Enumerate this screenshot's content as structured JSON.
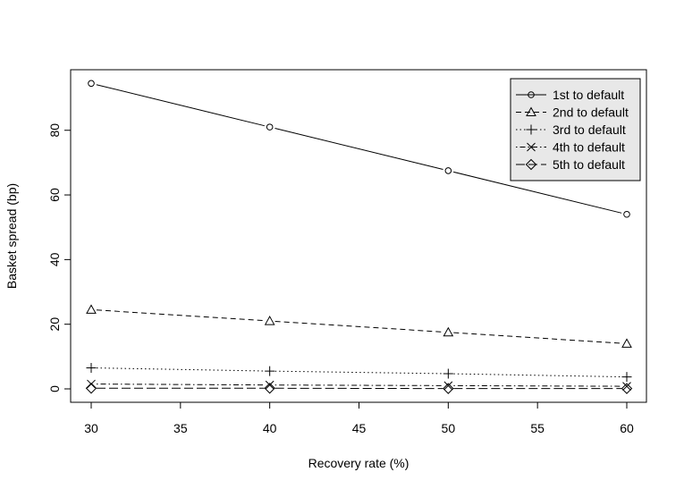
{
  "chart_data": {
    "type": "line",
    "title": "",
    "xlabel": "Recovery rate (%)",
    "ylabel": "Basket spread (bp)",
    "x": [
      30,
      40,
      50,
      60
    ],
    "xlim": [
      30,
      60
    ],
    "ylim": [
      0,
      95
    ],
    "xticks": [
      30,
      35,
      40,
      45,
      50,
      55,
      60
    ],
    "yticks": [
      0,
      20,
      40,
      60,
      80
    ],
    "grid": false,
    "legend_position": "top-right",
    "series": [
      {
        "name": "1st to default",
        "marker": "circle",
        "dash": "solid",
        "values": [
          94.5,
          81.0,
          67.5,
          54.0
        ]
      },
      {
        "name": "2nd to default",
        "marker": "triangle",
        "dash": "dashed",
        "values": [
          24.5,
          21.0,
          17.5,
          14.0
        ]
      },
      {
        "name": "3rd to default",
        "marker": "plus",
        "dash": "dotted",
        "values": [
          6.5,
          5.5,
          4.7,
          3.7
        ]
      },
      {
        "name": "4th to default",
        "marker": "cross",
        "dash": "dotdash",
        "values": [
          1.5,
          1.2,
          1.0,
          0.8
        ]
      },
      {
        "name": "5th to default",
        "marker": "diamond",
        "dash": "longdash",
        "values": [
          0.2,
          0.2,
          0.1,
          0.1
        ]
      }
    ]
  }
}
